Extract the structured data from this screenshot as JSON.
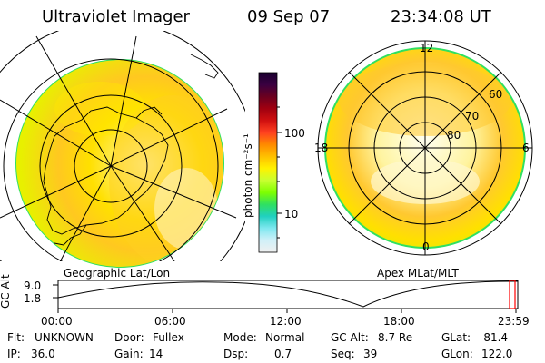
{
  "header": {
    "instrument": "Ultraviolet Imager",
    "date": "09 Sep 07",
    "time": "23:34:08 UT"
  },
  "left_panel": {
    "label": "Geographic Lat/Lon"
  },
  "right_panel": {
    "label": "Apex MLat/MLT",
    "mlt_labels": {
      "top": "12",
      "left": "18",
      "right": "6",
      "bottom": "0"
    },
    "lat_labels": [
      "60",
      "70",
      "80"
    ]
  },
  "colorbar": {
    "unit_label": "photon cm⁻²s⁻¹",
    "ticks": [
      "100",
      "10"
    ],
    "colors": [
      "#1a0030",
      "#3a0040",
      "#6a0020",
      "#a00010",
      "#d01010",
      "#ff4020",
      "#ff8a00",
      "#ffc000",
      "#fff200",
      "#c8ff30",
      "#7fff00",
      "#30e060",
      "#20d0c0",
      "#80e8f0",
      "#d0f0f8",
      "#f0f0f0"
    ]
  },
  "altitude_plot": {
    "axis_label": "GC Alt",
    "y_ticks": [
      "9.0",
      "1.8"
    ],
    "x_ticks": [
      "00:00",
      "06:00",
      "12:00",
      "18:00",
      "23:59"
    ],
    "marker_color": "#ff0000"
  },
  "metadata": {
    "filter_label": "Flt:",
    "filter_value": "UNKNOWN",
    "ip_label": "IP:",
    "ip_value": "36.0",
    "door_label": "Door:",
    "door_value": "Fullex",
    "gain_label": "Gain:",
    "gain_value": "14",
    "mode_label": "Mode:",
    "mode_value": "Normal",
    "dsp_label": "Dsp:",
    "dsp_value": "0.7",
    "gcalt_label": "GC Alt:",
    "gcalt_value": "8.7 Re",
    "seq_label": "Seq:",
    "seq_value": "39",
    "glat_label": "GLat:",
    "glat_value": "-81.4",
    "glon_label": "GLon:",
    "glon_value": "122.0"
  }
}
